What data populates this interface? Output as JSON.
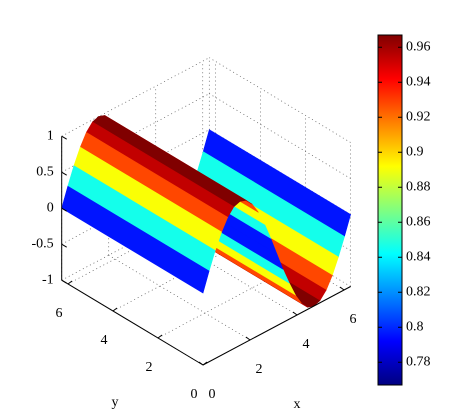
{
  "chart_data": {
    "type": "surface",
    "xlabel": "x",
    "ylabel": "y",
    "x": [
      0,
      0.26,
      0.52,
      0.79,
      1.05,
      1.31,
      1.57,
      1.83,
      2.09,
      2.36,
      2.62,
      2.88,
      3.14,
      3.4,
      3.67,
      3.93,
      4.19,
      4.45,
      4.71,
      4.97,
      5.24,
      5.5,
      5.76,
      6.02,
      6.28
    ],
    "z": [
      0,
      0.26,
      0.5,
      0.71,
      0.87,
      0.97,
      1,
      0.97,
      0.87,
      0.71,
      0.5,
      0.26,
      0,
      -0.26,
      -0.5,
      -0.71,
      -0.87,
      -0.97,
      -1,
      -0.97,
      -0.87,
      -0.71,
      -0.5,
      -0.26,
      0
    ],
    "c": [
      0.77,
      0.822,
      0.87,
      0.912,
      0.944,
      0.964,
      0.97,
      0.964,
      0.944,
      0.912,
      0.87,
      0.822,
      0.77,
      0.822,
      0.87,
      0.912,
      0.944,
      0.964,
      0.97,
      0.964,
      0.944,
      0.912,
      0.87,
      0.822,
      0.77
    ],
    "xlim": [
      0,
      6.28
    ],
    "ylim": [
      0,
      6.28
    ],
    "zlim": [
      -1,
      1
    ],
    "xticks": [
      0,
      2,
      4,
      6
    ],
    "yticks": [
      0,
      2,
      4,
      6
    ],
    "zticks": [
      -1,
      -0.5,
      0,
      0.5,
      1
    ],
    "clim": [
      0.767,
      0.967
    ],
    "cticks": [
      0.78,
      0.8,
      0.82,
      0.84,
      0.86,
      0.88,
      0.9,
      0.92,
      0.94,
      0.96
    ],
    "colormap": "jet",
    "grid": true
  }
}
